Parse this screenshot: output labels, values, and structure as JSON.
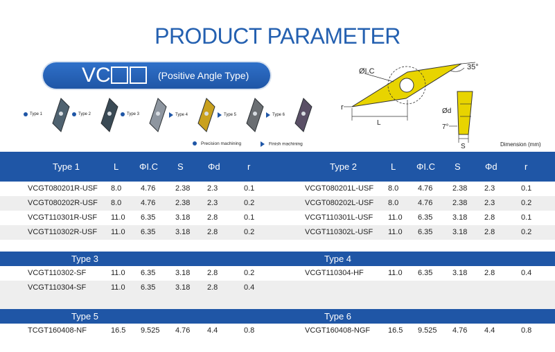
{
  "title": "PRODUCT PARAMETER",
  "series_badge": {
    "code": "VC",
    "subtitle": "(Positive Angle Type)"
  },
  "insert_types": [
    {
      "label": "Type 1",
      "marker": "dot",
      "color": "#4f6270"
    },
    {
      "label": "Type 2",
      "marker": "dot",
      "color": "#3a4a55"
    },
    {
      "label": "Type 3",
      "marker": "dot",
      "color": "#8e96a0"
    },
    {
      "label": "Type 4",
      "marker": "triangle",
      "color": "#c9a11e"
    },
    {
      "label": "Type 5",
      "marker": "triangle",
      "color": "#6a6e72"
    },
    {
      "label": "Type 6",
      "marker": "triangle",
      "color": "#5a4f66"
    }
  ],
  "legend": {
    "precision": "Precision machining",
    "finish": "Finish machining"
  },
  "diagram": {
    "angle_label": "35°",
    "ic_label": "ØI.C",
    "r_label": "r",
    "l_label": "L",
    "d_label": "Ød",
    "relief_label": "7°",
    "s_label": "S",
    "insert_color": "#e8d400"
  },
  "dimension_note": "Dimension (mm)",
  "columns": [
    "L",
    "ΦI.C",
    "S",
    "Φd",
    "r"
  ],
  "tables": [
    {
      "left": {
        "header": "Type 1",
        "rows": [
          [
            "VCGT080201R-USF",
            "8.0",
            "4.76",
            "2.38",
            "2.3",
            "0.1"
          ],
          [
            "VCGT080202R-USF",
            "8.0",
            "4.76",
            "2.38",
            "2.3",
            "0.2"
          ],
          [
            "VCGT110301R-USF",
            "11.0",
            "6.35",
            "3.18",
            "2.8",
            "0.1"
          ],
          [
            "VCGT110302R-USF",
            "11.0",
            "6.35",
            "3.18",
            "2.8",
            "0.2"
          ]
        ]
      },
      "right": {
        "header": "Type 2",
        "rows": [
          [
            "VCGT080201L-USF",
            "8.0",
            "4.76",
            "2.38",
            "2.3",
            "0.1"
          ],
          [
            "VCGT080202L-USF",
            "8.0",
            "4.76",
            "2.38",
            "2.3",
            "0.2"
          ],
          [
            "VCGT110301L-USF",
            "11.0",
            "6.35",
            "3.18",
            "2.8",
            "0.1"
          ],
          [
            "VCGT110302L-USF",
            "11.0",
            "6.35",
            "3.18",
            "2.8",
            "0.2"
          ]
        ]
      }
    },
    {
      "left": {
        "header": "Type 3",
        "rows": [
          [
            "VCGT110302-SF",
            "11.0",
            "6.35",
            "3.18",
            "2.8",
            "0.2"
          ],
          [
            "VCGT110304-SF",
            "11.0",
            "6.35",
            "3.18",
            "2.8",
            "0.4"
          ]
        ]
      },
      "right": {
        "header": "Type 4",
        "rows": [
          [
            "VCGT110304-HF",
            "11.0",
            "6.35",
            "3.18",
            "2.8",
            "0.4"
          ]
        ]
      }
    },
    {
      "left": {
        "header": "Type 5",
        "rows": [
          [
            "TCGT160408-NF",
            "16.5",
            "9.525",
            "4.76",
            "4.4",
            "0.8"
          ]
        ]
      },
      "right": {
        "header": "Type 6",
        "rows": [
          [
            "VCGT160408-NGF",
            "16.5",
            "9.525",
            "4.76",
            "4.4",
            "0.8"
          ]
        ]
      }
    }
  ]
}
